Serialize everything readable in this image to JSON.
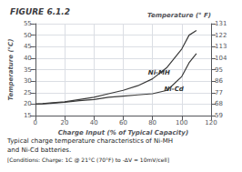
{
  "chart_data": {
    "type": "line",
    "title": "FIGURE 6.1.2",
    "xlabel": "Charge Input (% of Typical Capacity)",
    "ylabel": "Temperature (°C)",
    "y2label": "Temperature (° F)",
    "caption": [
      "Typical charge temperature characteristics of Ni-MH",
      "and Ni-Cd batteries.",
      "[Conditions: Charge: 1C @ 21°C (70°F) to -ΔV = 10mV/cell]"
    ],
    "x": [
      0,
      5,
      10,
      20,
      30,
      40,
      50,
      60,
      70,
      80,
      90,
      100,
      105,
      110
    ],
    "series": [
      {
        "name": "Ni-MH",
        "color": "#3a3a3a",
        "values": [
          20,
          20.2,
          20.5,
          21,
          22,
          23,
          24.5,
          26,
          28,
          31,
          36,
          44,
          50,
          52
        ]
      },
      {
        "name": "Ni-Cd",
        "color": "#3a3a3a",
        "values": [
          20,
          20.1,
          20.3,
          20.8,
          21.5,
          22,
          23,
          23.5,
          24,
          24.5,
          26,
          32,
          38,
          42
        ]
      }
    ],
    "annotations": [
      {
        "text": "Ni-MH",
        "x": 77,
        "y": 33.5
      },
      {
        "text": "Ni-Cd",
        "x": 88,
        "y": 26.5
      }
    ],
    "xlim": [
      0,
      120
    ],
    "xticks": [
      0,
      20,
      40,
      60,
      80,
      100,
      120
    ],
    "ylim": [
      15,
      55
    ],
    "yticks": [
      15,
      20,
      25,
      30,
      35,
      40,
      45,
      50,
      55
    ],
    "y2lim": [
      59,
      131
    ],
    "y2ticks": [
      59,
      68,
      77,
      86,
      95,
      104,
      113,
      122,
      131
    ],
    "grid": true,
    "legend": false
  }
}
